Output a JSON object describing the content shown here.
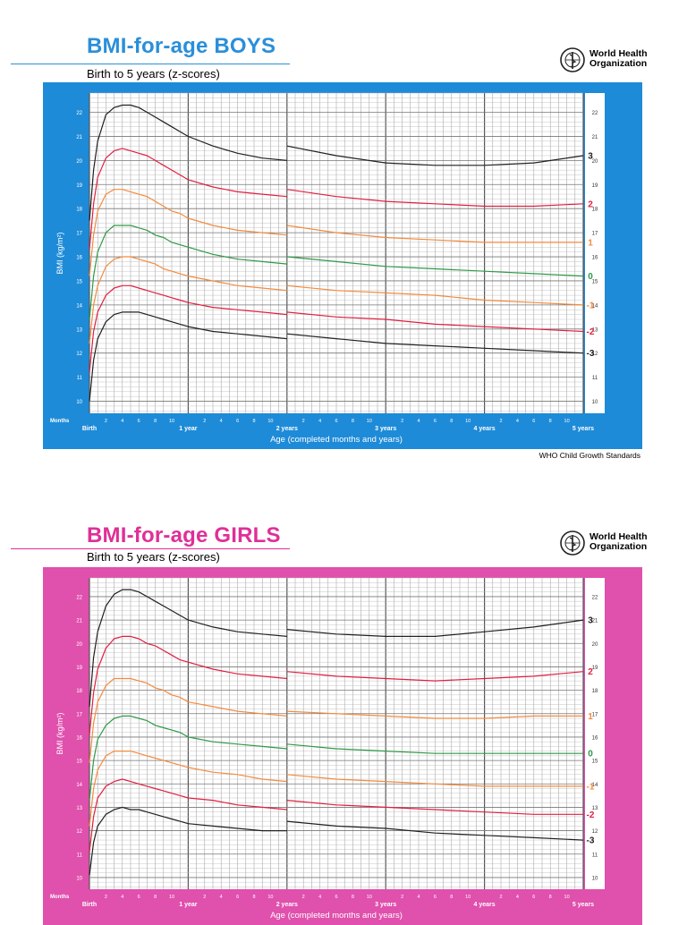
{
  "charts": [
    {
      "id": "boys",
      "title": "BMI-for-age BOYS",
      "subtitle": "Birth to 5 years (z-scores)",
      "accent": "#1e8bd8",
      "title_color": "#2a8fd9",
      "footer": "WHO Child Growth Standards",
      "org": {
        "line1": "World Health",
        "line2": "Organization"
      }
    },
    {
      "id": "girls",
      "title": "BMI-for-age GIRLS",
      "subtitle": "Birth to 5 years (z-scores)",
      "accent": "#e050ad",
      "title_color": "#e02f97",
      "footer": "",
      "org": {
        "line1": "World Health",
        "line2": "Organization"
      }
    }
  ],
  "chart_data": [
    {
      "type": "line",
      "title": "BMI-for-age BOYS",
      "subtitle": "Birth to 5 years (z-scores)",
      "xlabel": "Age (completed months and years)",
      "ylabel": "BMI (kg/m²)",
      "xlim": [
        0,
        60
      ],
      "ylim": [
        9.5,
        22.8
      ],
      "y_ticks": [
        10,
        11,
        12,
        13,
        14,
        15,
        16,
        17,
        18,
        19,
        20,
        21,
        22
      ],
      "x_ticks_months": [
        "2",
        "4",
        "6",
        "8",
        "10"
      ],
      "months_label": "Months",
      "x_year_labels": [
        {
          "age": 0,
          "label": "Birth"
        },
        {
          "age": 12,
          "label": "1 year"
        },
        {
          "age": 24,
          "label": "2 years"
        },
        {
          "age": 36,
          "label": "3 years"
        },
        {
          "age": 48,
          "label": "4 years"
        },
        {
          "age": 60,
          "label": "5 years"
        }
      ],
      "x": [
        0,
        0.5,
        1,
        2,
        3,
        4,
        5,
        6,
        7,
        8,
        9,
        10,
        11,
        12,
        15,
        18,
        21,
        24,
        30,
        36,
        42,
        48,
        54,
        60
      ],
      "series": [
        {
          "name": "3",
          "color": "#231f20",
          "values": [
            17.5,
            19.6,
            20.8,
            21.9,
            22.2,
            22.3,
            22.3,
            22.2,
            22.0,
            21.8,
            21.6,
            21.4,
            21.2,
            21.0,
            20.6,
            20.3,
            20.1,
            20.0,
            19.8,
            19.8,
            19.8,
            19.9,
            20.0,
            20.2
          ],
          "values_after_2y": [
            20.6,
            20.2,
            19.9,
            19.8,
            19.8,
            19.9,
            20.2
          ]
        },
        {
          "name": "2",
          "color": "#e21e3f",
          "values": [
            16.3,
            18.2,
            19.3,
            20.1,
            20.4,
            20.5,
            20.4,
            20.3,
            20.2,
            20.0,
            19.8,
            19.6,
            19.4,
            19.2,
            18.9,
            18.7,
            18.6,
            18.5,
            18.3,
            18.2,
            18.1,
            18.1,
            18.1,
            18.2
          ],
          "values_after_2y": [
            18.8,
            18.5,
            18.3,
            18.2,
            18.1,
            18.1,
            18.2
          ]
        },
        {
          "name": "1",
          "color": "#f58a3c",
          "values": [
            15.2,
            16.9,
            17.9,
            18.6,
            18.8,
            18.8,
            18.7,
            18.6,
            18.5,
            18.3,
            18.1,
            17.9,
            17.8,
            17.6,
            17.3,
            17.1,
            17.0,
            16.9,
            16.8,
            16.7,
            16.6,
            16.6,
            16.6,
            16.6
          ],
          "values_after_2y": [
            17.3,
            17.0,
            16.8,
            16.7,
            16.6,
            16.6,
            16.6
          ]
        },
        {
          "name": "0",
          "color": "#2e9a47",
          "values": [
            13.4,
            15.2,
            16.2,
            17.0,
            17.3,
            17.3,
            17.3,
            17.2,
            17.1,
            16.9,
            16.8,
            16.6,
            16.5,
            16.4,
            16.1,
            15.9,
            15.8,
            15.7,
            15.6,
            15.5,
            15.4,
            15.3,
            15.2,
            15.2
          ],
          "values_after_2y": [
            16.0,
            15.8,
            15.6,
            15.5,
            15.4,
            15.3,
            15.2
          ]
        },
        {
          "name": "-1",
          "color": "#f58a3c",
          "values": [
            12.4,
            14.0,
            14.8,
            15.6,
            15.9,
            16.0,
            16.0,
            15.9,
            15.8,
            15.7,
            15.5,
            15.4,
            15.3,
            15.2,
            15.0,
            14.8,
            14.7,
            14.6,
            14.5,
            14.4,
            14.3,
            14.2,
            14.1,
            14.0
          ],
          "values_after_2y": [
            14.8,
            14.6,
            14.5,
            14.4,
            14.2,
            14.1,
            14.0
          ]
        },
        {
          "name": "-2",
          "color": "#e21e3f",
          "values": [
            11.2,
            12.9,
            13.7,
            14.4,
            14.7,
            14.8,
            14.8,
            14.7,
            14.6,
            14.5,
            14.4,
            14.3,
            14.2,
            14.1,
            13.9,
            13.8,
            13.7,
            13.6,
            13.4,
            13.3,
            13.2,
            13.1,
            13.0,
            12.9
          ],
          "values_after_2y": [
            13.7,
            13.5,
            13.4,
            13.2,
            13.1,
            13.0,
            12.9
          ]
        },
        {
          "name": "-3",
          "color": "#231f20",
          "values": [
            10.0,
            11.7,
            12.6,
            13.3,
            13.6,
            13.7,
            13.7,
            13.7,
            13.6,
            13.5,
            13.4,
            13.3,
            13.2,
            13.1,
            12.9,
            12.8,
            12.7,
            12.6,
            12.5,
            12.4,
            12.3,
            12.2,
            12.1,
            12.0
          ],
          "values_after_2y": [
            12.8,
            12.6,
            12.4,
            12.3,
            12.2,
            12.1,
            12.0
          ]
        }
      ]
    },
    {
      "type": "line",
      "title": "BMI-for-age GIRLS",
      "subtitle": "Birth to 5 years (z-scores)",
      "xlabel": "Age (completed months and years)",
      "ylabel": "BMI (kg/m²)",
      "xlim": [
        0,
        60
      ],
      "ylim": [
        9.5,
        22.8
      ],
      "y_ticks": [
        10,
        11,
        12,
        13,
        14,
        15,
        16,
        17,
        18,
        19,
        20,
        21,
        22
      ],
      "x_ticks_months": [
        "2",
        "4",
        "6",
        "8",
        "10"
      ],
      "months_label": "Months",
      "x_year_labels": [
        {
          "age": 0,
          "label": "Birth"
        },
        {
          "age": 12,
          "label": "1 year"
        },
        {
          "age": 24,
          "label": "2 years"
        },
        {
          "age": 36,
          "label": "3 years"
        },
        {
          "age": 48,
          "label": "4 years"
        },
        {
          "age": 60,
          "label": "5 years"
        }
      ],
      "x": [
        0,
        0.5,
        1,
        2,
        3,
        4,
        5,
        6,
        7,
        8,
        9,
        10,
        11,
        12,
        15,
        18,
        21,
        24,
        30,
        36,
        42,
        48,
        54,
        60
      ],
      "series": [
        {
          "name": "3",
          "color": "#231f20",
          "values": [
            17.3,
            19.4,
            20.5,
            21.6,
            22.1,
            22.3,
            22.3,
            22.2,
            22.0,
            21.8,
            21.6,
            21.4,
            21.2,
            21.0,
            20.7,
            20.5,
            20.4,
            20.3,
            20.3,
            20.3,
            20.4,
            20.6,
            20.8,
            21.0
          ],
          "values_after_2y": [
            20.6,
            20.4,
            20.3,
            20.3,
            20.5,
            20.7,
            21.0
          ]
        },
        {
          "name": "2",
          "color": "#e21e3f",
          "values": [
            16.1,
            17.9,
            18.9,
            19.8,
            20.2,
            20.3,
            20.3,
            20.2,
            20.0,
            19.9,
            19.7,
            19.5,
            19.3,
            19.2,
            18.9,
            18.7,
            18.6,
            18.5,
            18.4,
            18.4,
            18.4,
            18.5,
            18.6,
            18.8
          ],
          "values_after_2y": [
            18.8,
            18.6,
            18.5,
            18.4,
            18.5,
            18.6,
            18.8
          ]
        },
        {
          "name": "1",
          "color": "#f58a3c",
          "values": [
            14.9,
            16.6,
            17.5,
            18.2,
            18.5,
            18.5,
            18.5,
            18.4,
            18.3,
            18.1,
            18.0,
            17.8,
            17.7,
            17.5,
            17.3,
            17.1,
            17.0,
            16.9,
            16.8,
            16.8,
            16.8,
            16.8,
            16.9,
            16.9
          ],
          "values_after_2y": [
            17.1,
            17.0,
            16.9,
            16.8,
            16.8,
            16.9,
            16.9
          ]
        },
        {
          "name": "0",
          "color": "#2e9a47",
          "values": [
            13.3,
            15.0,
            15.9,
            16.5,
            16.8,
            16.9,
            16.9,
            16.8,
            16.7,
            16.5,
            16.4,
            16.3,
            16.2,
            16.0,
            15.8,
            15.7,
            15.6,
            15.5,
            15.4,
            15.3,
            15.3,
            15.3,
            15.3,
            15.3
          ],
          "values_after_2y": [
            15.7,
            15.5,
            15.4,
            15.3,
            15.3,
            15.3,
            15.3
          ]
        },
        {
          "name": "-1",
          "color": "#f58a3c",
          "values": [
            12.2,
            13.8,
            14.6,
            15.2,
            15.4,
            15.4,
            15.4,
            15.3,
            15.2,
            15.1,
            15.0,
            14.9,
            14.8,
            14.7,
            14.5,
            14.4,
            14.2,
            14.1,
            14.0,
            14.0,
            13.9,
            13.9,
            13.9,
            13.9
          ],
          "values_after_2y": [
            14.4,
            14.2,
            14.1,
            14.0,
            13.9,
            13.9,
            13.9
          ]
        },
        {
          "name": "-2",
          "color": "#e21e3f",
          "values": [
            11.1,
            12.6,
            13.4,
            13.9,
            14.1,
            14.2,
            14.1,
            14.0,
            13.9,
            13.8,
            13.7,
            13.6,
            13.5,
            13.4,
            13.3,
            13.1,
            13.0,
            12.9,
            12.9,
            12.8,
            12.8,
            12.7,
            12.7,
            12.7
          ],
          "values_after_2y": [
            13.3,
            13.1,
            13.0,
            12.9,
            12.8,
            12.7,
            12.7
          ]
        },
        {
          "name": "-3",
          "color": "#231f20",
          "values": [
            10.1,
            11.5,
            12.2,
            12.7,
            12.9,
            13.0,
            12.9,
            12.9,
            12.8,
            12.7,
            12.6,
            12.5,
            12.4,
            12.3,
            12.2,
            12.1,
            12.0,
            12.0,
            11.9,
            11.8,
            11.8,
            11.7,
            11.7,
            11.6
          ],
          "values_after_2y": [
            12.4,
            12.2,
            12.1,
            11.9,
            11.8,
            11.7,
            11.6
          ]
        }
      ]
    }
  ]
}
